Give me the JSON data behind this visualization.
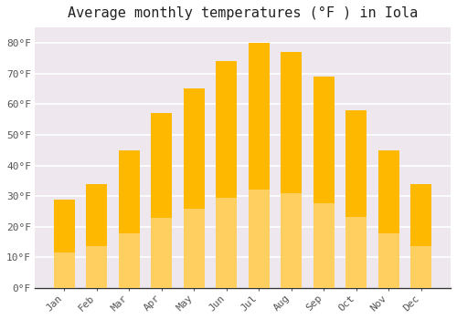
{
  "title": "Average monthly temperatures (°F ) in Iola",
  "months": [
    "Jan",
    "Feb",
    "Mar",
    "Apr",
    "May",
    "Jun",
    "Jul",
    "Aug",
    "Sep",
    "Oct",
    "Nov",
    "Dec"
  ],
  "values": [
    29,
    34,
    45,
    57,
    65,
    74,
    80,
    77,
    69,
    58,
    45,
    34
  ],
  "bar_color_top": "#FFB800",
  "bar_color_bottom": "#FFD060",
  "bar_edge_color": "none",
  "plot_bg_color": "#EEE8EE",
  "figure_bg_color": "#FFFFFF",
  "grid_color": "#FFFFFF",
  "ylim": [
    0,
    85
  ],
  "yticks": [
    0,
    10,
    20,
    30,
    40,
    50,
    60,
    70,
    80
  ],
  "ytick_labels": [
    "0°F",
    "10°F",
    "20°F",
    "30°F",
    "40°F",
    "50°F",
    "60°F",
    "70°F",
    "80°F"
  ],
  "title_fontsize": 11,
  "tick_fontsize": 8,
  "tick_font_color": "#555555",
  "spine_color": "#333333"
}
